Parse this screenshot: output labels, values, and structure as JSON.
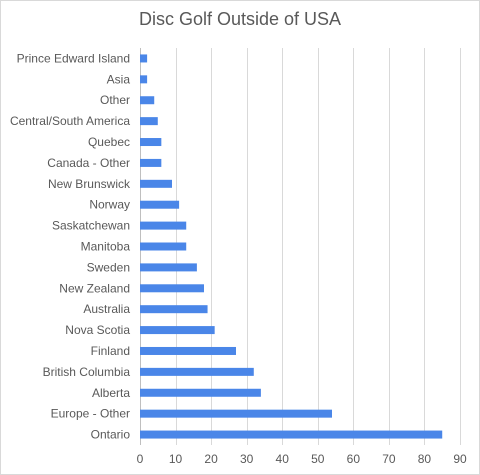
{
  "chart_data": {
    "type": "bar",
    "orientation": "horizontal",
    "title": "Disc Golf Outside of USA",
    "categories": [
      "Prince Edward Island",
      "Asia",
      "Other",
      "Central/South America",
      "Quebec",
      "Canada - Other",
      "New Brunswick",
      "Norway",
      "Saskatchewan",
      "Manitoba",
      "Sweden",
      "New Zealand",
      "Australia",
      "Nova Scotia",
      "Finland",
      "British Columbia",
      "Alberta",
      "Europe - Other",
      "Ontario"
    ],
    "values": [
      2,
      2,
      4,
      5,
      6,
      6,
      9,
      11,
      13,
      13,
      16,
      18,
      19,
      21,
      27,
      32,
      34,
      54,
      85
    ],
    "xlim": [
      0,
      90
    ],
    "xticks": [
      0,
      10,
      20,
      30,
      40,
      50,
      60,
      70,
      80,
      90
    ],
    "grid": "vertical",
    "bar_color": "#4a86e8",
    "grid_color": "#d9d9d9",
    "axis_color": "#bfbfbf"
  }
}
